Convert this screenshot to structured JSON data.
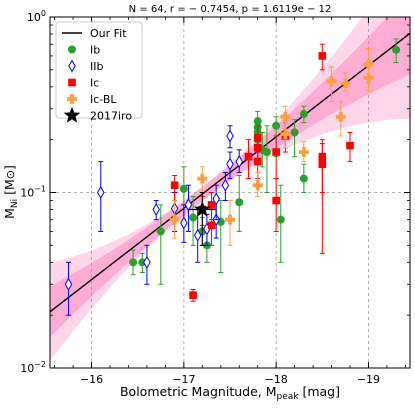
{
  "chart_data": {
    "type": "scatter",
    "title": "N = 64, r = − 0.7454, p = 1.6119e − 12",
    "xlabel": "Bolometric Magnitude, M",
    "xlabel_sub": "peak",
    "xlabel_unit": " [mag]",
    "ylabel": "M",
    "ylabel_sub": "Ni",
    "ylabel_unit": " [M",
    "ylabel_close": "]",
    "xlim": [
      -15.55,
      -19.45
    ],
    "ylim": [
      0.01,
      1.0
    ],
    "yscale": "log",
    "grid": true,
    "legend_position": "upper-left",
    "x_ticks": [
      {
        "value": -16,
        "label": "−16"
      },
      {
        "value": -17,
        "label": "−17"
      },
      {
        "value": -18,
        "label": "−18"
      },
      {
        "value": -19,
        "label": "−19"
      }
    ],
    "y_ticks": [
      {
        "value": 0.01,
        "base": "10",
        "exp": "−2"
      },
      {
        "value": 0.1,
        "base": "10",
        "exp": "−1"
      },
      {
        "value": 1.0,
        "base": "10",
        "exp": "0"
      }
    ],
    "fit": {
      "name": "Our Fit",
      "slope": -0.4068,
      "intercept": -8.0053,
      "color": "#000000",
      "band_color": "#ff69b4"
    },
    "series": [
      {
        "name": "Ib",
        "marker": "circle",
        "color": "#2ca02c",
        "points": [
          {
            "x": -16.45,
            "y": 0.04,
            "lo": 0.034,
            "hi": 0.047
          },
          {
            "x": -16.55,
            "y": 0.04,
            "lo": 0.035,
            "hi": 0.045
          },
          {
            "x": -16.75,
            "y": 0.06,
            "lo": 0.03,
            "hi": 0.085
          },
          {
            "x": -17.0,
            "y": 0.105,
            "lo": 0.07,
            "hi": 0.14
          },
          {
            "x": -17.1,
            "y": 0.072,
            "lo": 0.05,
            "hi": 0.095
          },
          {
            "x": -17.2,
            "y": 0.06,
            "lo": 0.05,
            "hi": 0.072
          },
          {
            "x": -17.25,
            "y": 0.05,
            "lo": 0.04,
            "hi": 0.06
          },
          {
            "x": -17.4,
            "y": 0.068,
            "lo": 0.035,
            "hi": 0.09
          },
          {
            "x": -17.6,
            "y": 0.088,
            "lo": 0.06,
            "hi": 0.125
          },
          {
            "x": -17.8,
            "y": 0.2,
            "lo": 0.18,
            "hi": 0.225
          },
          {
            "x": -17.8,
            "y": 0.22,
            "lo": 0.2,
            "hi": 0.245
          },
          {
            "x": -17.8,
            "y": 0.235,
            "lo": 0.21,
            "hi": 0.265
          },
          {
            "x": -17.8,
            "y": 0.255,
            "lo": 0.23,
            "hi": 0.29
          },
          {
            "x": -17.85,
            "y": 0.175,
            "lo": 0.14,
            "hi": 0.22
          },
          {
            "x": -17.9,
            "y": 0.17,
            "lo": 0.1,
            "hi": 0.24
          },
          {
            "x": -18.0,
            "y": 0.24,
            "lo": 0.16,
            "hi": 0.27
          },
          {
            "x": -18.05,
            "y": 0.07,
            "lo": 0.04,
            "hi": 0.11
          },
          {
            "x": -18.2,
            "y": 0.22,
            "lo": 0.16,
            "hi": 0.26
          },
          {
            "x": -18.3,
            "y": 0.28,
            "lo": 0.25,
            "hi": 0.31
          },
          {
            "x": -18.3,
            "y": 0.12,
            "lo": 0.1,
            "hi": 0.145
          },
          {
            "x": -19.3,
            "y": 0.65,
            "lo": 0.55,
            "hi": 0.75
          }
        ]
      },
      {
        "name": "IIb",
        "marker": "diamond-open",
        "color": "#0000ff",
        "points": [
          {
            "x": -15.75,
            "y": 0.03,
            "lo": 0.02,
            "hi": 0.04
          },
          {
            "x": -16.1,
            "y": 0.1,
            "lo": 0.06,
            "hi": 0.15
          },
          {
            "x": -16.6,
            "y": 0.04,
            "lo": 0.03,
            "hi": 0.05
          },
          {
            "x": -16.7,
            "y": 0.08,
            "lo": 0.07,
            "hi": 0.09
          },
          {
            "x": -16.9,
            "y": 0.081,
            "lo": 0.06,
            "hi": 0.1
          },
          {
            "x": -17.0,
            "y": 0.067,
            "lo": 0.052,
            "hi": 0.085
          },
          {
            "x": -17.05,
            "y": 0.085,
            "lo": 0.06,
            "hi": 0.11
          },
          {
            "x": -17.15,
            "y": 0.057,
            "lo": 0.04,
            "hi": 0.08
          },
          {
            "x": -17.25,
            "y": 0.062,
            "lo": 0.05,
            "hi": 0.075
          },
          {
            "x": -17.35,
            "y": 0.07,
            "lo": 0.055,
            "hi": 0.09
          },
          {
            "x": -17.35,
            "y": 0.092,
            "lo": 0.07,
            "hi": 0.11
          },
          {
            "x": -17.45,
            "y": 0.11,
            "lo": 0.09,
            "hi": 0.13
          },
          {
            "x": -17.5,
            "y": 0.145,
            "lo": 0.12,
            "hi": 0.17
          },
          {
            "x": -17.5,
            "y": 0.21,
            "lo": 0.18,
            "hi": 0.24
          },
          {
            "x": -17.6,
            "y": 0.15,
            "lo": 0.13,
            "hi": 0.175
          }
        ]
      },
      {
        "name": "Ic",
        "marker": "square",
        "color": "#ff0000",
        "points": [
          {
            "x": -16.9,
            "y": 0.11,
            "lo": 0.09,
            "hi": 0.125
          },
          {
            "x": -17.1,
            "y": 0.026,
            "lo": 0.024,
            "hi": 0.028
          },
          {
            "x": -17.2,
            "y": 0.08,
            "lo": 0.065,
            "hi": 0.095
          },
          {
            "x": -17.3,
            "y": 0.065,
            "lo": 0.05,
            "hi": 0.085
          },
          {
            "x": -17.3,
            "y": 0.085,
            "lo": 0.07,
            "hi": 0.1
          },
          {
            "x": -17.7,
            "y": 0.16,
            "lo": 0.12,
            "hi": 0.2
          },
          {
            "x": -17.8,
            "y": 0.15,
            "lo": 0.12,
            "hi": 0.18
          },
          {
            "x": -17.8,
            "y": 0.18,
            "lo": 0.15,
            "hi": 0.21
          },
          {
            "x": -17.8,
            "y": 0.205,
            "lo": 0.17,
            "hi": 0.24
          },
          {
            "x": -18.0,
            "y": 0.09,
            "lo": 0.06,
            "hi": 0.12
          },
          {
            "x": -18.0,
            "y": 0.17,
            "lo": 0.12,
            "hi": 0.21
          },
          {
            "x": -18.1,
            "y": 0.21,
            "lo": 0.17,
            "hi": 0.25
          },
          {
            "x": -18.5,
            "y": 0.6,
            "lo": 0.5,
            "hi": 0.7
          },
          {
            "x": -18.5,
            "y": 0.16,
            "lo": 0.1,
            "hi": 0.2
          },
          {
            "x": -18.5,
            "y": 0.145,
            "lo": 0.045,
            "hi": 0.19
          },
          {
            "x": -18.8,
            "y": 0.185,
            "lo": 0.15,
            "hi": 0.22
          }
        ]
      },
      {
        "name": "Ic-BL",
        "marker": "plus-filled",
        "color": "#ffa040",
        "points": [
          {
            "x": -16.9,
            "y": 0.07,
            "lo": 0.055,
            "hi": 0.09
          },
          {
            "x": -17.2,
            "y": 0.12,
            "lo": 0.1,
            "hi": 0.14
          },
          {
            "x": -17.5,
            "y": 0.07,
            "lo": 0.05,
            "hi": 0.09
          },
          {
            "x": -17.8,
            "y": 0.11,
            "lo": 0.095,
            "hi": 0.13
          },
          {
            "x": -18.1,
            "y": 0.27,
            "lo": 0.23,
            "hi": 0.31
          },
          {
            "x": -18.1,
            "y": 0.215,
            "lo": 0.18,
            "hi": 0.25
          },
          {
            "x": -18.3,
            "y": 0.17,
            "lo": 0.15,
            "hi": 0.195
          },
          {
            "x": -18.6,
            "y": 0.43,
            "lo": 0.33,
            "hi": 0.52
          },
          {
            "x": -18.7,
            "y": 0.27,
            "lo": 0.21,
            "hi": 0.33
          },
          {
            "x": -18.75,
            "y": 0.42,
            "lo": 0.38,
            "hi": 0.48
          },
          {
            "x": -19.0,
            "y": 0.54,
            "lo": 0.42,
            "hi": 0.66
          },
          {
            "x": -19.0,
            "y": 0.45,
            "lo": 0.38,
            "hi": 0.52
          }
        ]
      },
      {
        "name": "2017iro",
        "marker": "star",
        "color": "#000000",
        "points": [
          {
            "x": -17.2,
            "y": 0.08,
            "lo": 0.05,
            "hi": 0.1,
            "xerr": 0.15
          }
        ]
      }
    ]
  }
}
